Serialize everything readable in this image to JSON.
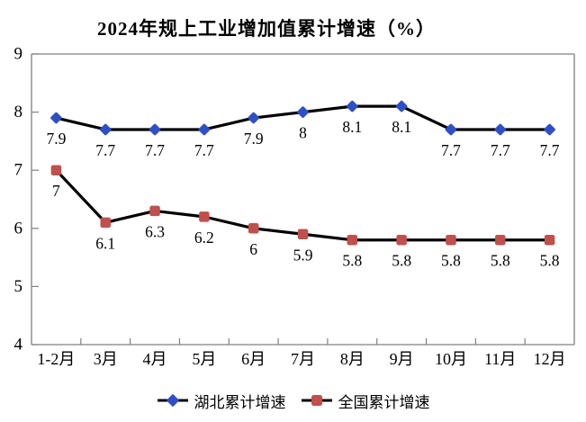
{
  "chart_data": {
    "type": "line",
    "title": "2024年规上工业增加值累计增速（%）",
    "categories": [
      "1-2月",
      "3月",
      "4月",
      "5月",
      "6月",
      "7月",
      "8月",
      "9月",
      "10月",
      "11月",
      "12月"
    ],
    "series": [
      {
        "name": "湖北累计增速",
        "values": [
          7.9,
          7.7,
          7.7,
          7.7,
          7.9,
          8,
          8.1,
          8.1,
          7.7,
          7.7,
          7.7
        ],
        "labels": [
          "7.9",
          "7.7",
          "7.7",
          "7.7",
          "7.9",
          "8",
          "8.1",
          "8.1",
          "7.7",
          "7.7",
          "7.7"
        ],
        "marker": "diamond",
        "marker_color": "#2E4FC5",
        "line_color": "#000000"
      },
      {
        "name": "全国累计增速",
        "values": [
          7,
          6.1,
          6.3,
          6.2,
          6,
          5.9,
          5.8,
          5.8,
          5.8,
          5.8,
          5.8
        ],
        "labels": [
          "7",
          "6.1",
          "6.3",
          "6.2",
          "6",
          "5.9",
          "5.8",
          "5.8",
          "5.8",
          "5.8",
          "5.8"
        ],
        "marker": "square",
        "marker_color": "#C0504D",
        "line_color": "#000000"
      }
    ],
    "ylim": [
      4,
      9
    ],
    "ytick_step": 1,
    "yticks": [
      "4",
      "5",
      "6",
      "7",
      "8",
      "9"
    ],
    "grid": false,
    "legend_position": "bottom",
    "axis_color": "#808080",
    "border_color": "#808080",
    "label_color": "#000000"
  }
}
